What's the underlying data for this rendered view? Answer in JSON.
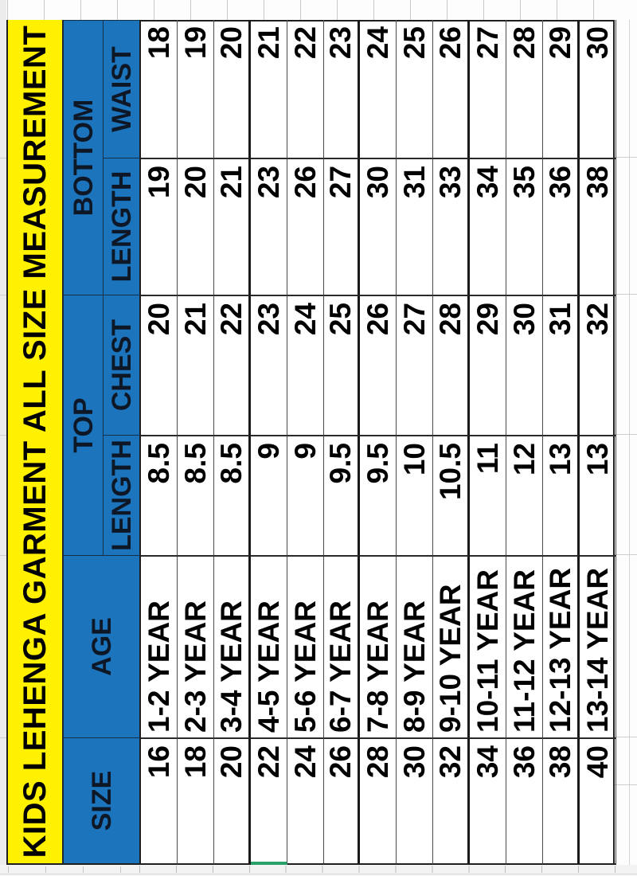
{
  "title": "KIDS LEHENGA GARMENT ALL SIZE MEASUREMENT",
  "orientation_note": "table rendered rotated 90 degrees counter-clockwise",
  "table": {
    "headers": {
      "size": "SIZE",
      "age": "AGE",
      "top_group": "TOP",
      "bottom_group": "BOTTOM",
      "top_length": "LENGTH",
      "top_chest": "CHEST",
      "bottom_length": "LENGTH",
      "bottom_waist": "WAIST"
    },
    "rows": [
      {
        "size": "16",
        "age": "1-2 YEAR",
        "top_length": "8.5",
        "top_chest": "20",
        "bottom_length": "19",
        "bottom_waist": "18"
      },
      {
        "size": "18",
        "age": "2-3 YEAR",
        "top_length": "8.5",
        "top_chest": "21",
        "bottom_length": "20",
        "bottom_waist": "19"
      },
      {
        "size": "20",
        "age": "3-4 YEAR",
        "top_length": "8.5",
        "top_chest": "22",
        "bottom_length": "21",
        "bottom_waist": "20"
      },
      {
        "size": "22",
        "age": "4-5 YEAR",
        "top_length": "9",
        "top_chest": "23",
        "bottom_length": "23",
        "bottom_waist": "21"
      },
      {
        "size": "24",
        "age": "5-6 YEAR",
        "top_length": "9",
        "top_chest": "24",
        "bottom_length": "26",
        "bottom_waist": "22"
      },
      {
        "size": "26",
        "age": "6-7 YEAR",
        "top_length": "9.5",
        "top_chest": "25",
        "bottom_length": "27",
        "bottom_waist": "23"
      },
      {
        "size": "28",
        "age": "7-8 YEAR",
        "top_length": "9.5",
        "top_chest": "26",
        "bottom_length": "30",
        "bottom_waist": "24"
      },
      {
        "size": "30",
        "age": "8-9 YEAR",
        "top_length": "10",
        "top_chest": "27",
        "bottom_length": "31",
        "bottom_waist": "25"
      },
      {
        "size": "32",
        "age": "9-10 YEAR",
        "top_length": "10.5",
        "top_chest": "28",
        "bottom_length": "33",
        "bottom_waist": "26"
      },
      {
        "size": "34",
        "age": "10-11 YEAR",
        "top_length": "11",
        "top_chest": "29",
        "bottom_length": "34",
        "bottom_waist": "27"
      },
      {
        "size": "36",
        "age": "11-12 YEAR",
        "top_length": "12",
        "top_chest": "30",
        "bottom_length": "35",
        "bottom_waist": "28"
      },
      {
        "size": "38",
        "age": "12-13 YEAR",
        "top_length": "13",
        "top_chest": "31",
        "bottom_length": "36",
        "bottom_waist": "29"
      },
      {
        "size": "40",
        "age": "13-14 YEAR",
        "top_length": "13",
        "top_chest": "32",
        "bottom_length": "38",
        "bottom_waist": "30"
      }
    ]
  },
  "colors": {
    "title_bg": "#FFF100",
    "header_bg": "#1B74BC",
    "header_text": "#0E1726",
    "cell_text": "#000000",
    "selection_green": "#2AA06A"
  }
}
